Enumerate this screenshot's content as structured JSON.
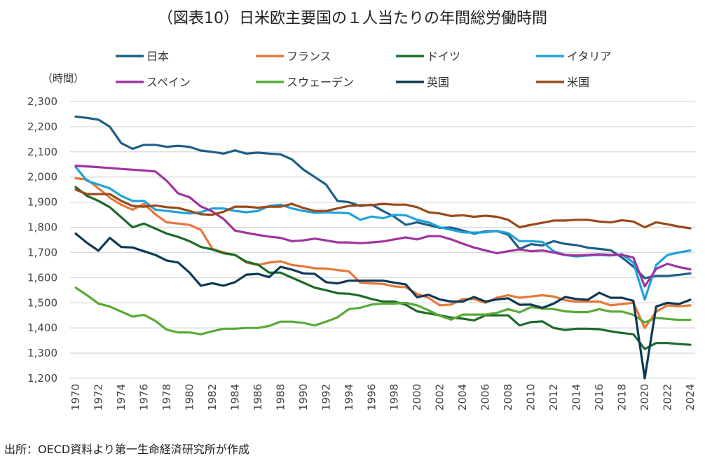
{
  "chart_data": {
    "type": "line",
    "title": "（図表10）日米欧主要国の１人当たりの年間総労働時間",
    "ylabel": "（時間）",
    "source": "出所：OECD資料より第一生命経済研究所が作成",
    "ylim": [
      1200,
      2300
    ],
    "yticks": [
      "1,200",
      "1,300",
      "1,400",
      "1,500",
      "1,600",
      "1,700",
      "1,800",
      "1,900",
      "2,000",
      "2,100",
      "2,200",
      "2,300"
    ],
    "x": [
      1970,
      1971,
      1972,
      1973,
      1974,
      1975,
      1976,
      1977,
      1978,
      1979,
      1980,
      1981,
      1982,
      1983,
      1984,
      1985,
      1986,
      1987,
      1988,
      1989,
      1990,
      1991,
      1992,
      1993,
      1994,
      1995,
      1996,
      1997,
      1998,
      1999,
      2000,
      2001,
      2002,
      2003,
      2004,
      2005,
      2006,
      2007,
      2008,
      2009,
      2010,
      2011,
      2012,
      2013,
      2014,
      2015,
      2016,
      2017,
      2018,
      2019,
      2020,
      2021,
      2022,
      2023,
      2024
    ],
    "xticks": [
      "1970",
      "1972",
      "1974",
      "1976",
      "1978",
      "1980",
      "1982",
      "1984",
      "1986",
      "1988",
      "1990",
      "1992",
      "1994",
      "1996",
      "1998",
      "2000",
      "2002",
      "2004",
      "2006",
      "2008",
      "2010",
      "2012",
      "2014",
      "2016",
      "2018",
      "2020",
      "2022",
      "2024"
    ],
    "grid": true,
    "legend_position": "top",
    "series": [
      {
        "name": "日本",
        "color": "#1f5f85",
        "values": [
          2240,
          2235,
          2228,
          2200,
          2135,
          2112,
          2128,
          2128,
          2120,
          2124,
          2120,
          2105,
          2100,
          2093,
          2106,
          2093,
          2097,
          2093,
          2090,
          2070,
          2030,
          2000,
          1970,
          1905,
          1900,
          1885,
          1890,
          1865,
          1842,
          1810,
          1820,
          1809,
          1798,
          1799,
          1787,
          1775,
          1784,
          1785,
          1771,
          1714,
          1733,
          1728,
          1745,
          1734,
          1729,
          1719,
          1714,
          1709,
          1680,
          1644,
          1598,
          1607,
          1607,
          1611,
          1617
        ]
      },
      {
        "name": "フランス",
        "color": "#e8773a",
        "values": [
          1995,
          1990,
          1955,
          1918,
          1890,
          1870,
          1893,
          1852,
          1820,
          1815,
          1810,
          1790,
          1715,
          1700,
          1690,
          1660,
          1650,
          1660,
          1665,
          1650,
          1645,
          1637,
          1636,
          1630,
          1625,
          1580,
          1577,
          1575,
          1565,
          1562,
          1535,
          1520,
          1490,
          1493,
          1515,
          1515,
          1500,
          1520,
          1530,
          1520,
          1525,
          1530,
          1525,
          1510,
          1505,
          1505,
          1505,
          1490,
          1495,
          1500,
          1400,
          1465,
          1490,
          1486,
          1490
        ]
      },
      {
        "name": "ドイツ",
        "color": "#1e6b2a",
        "values": [
          1960,
          1925,
          1905,
          1880,
          1840,
          1800,
          1815,
          1795,
          1775,
          1762,
          1745,
          1722,
          1712,
          1697,
          1690,
          1663,
          1652,
          1620,
          1620,
          1600,
          1580,
          1560,
          1550,
          1538,
          1536,
          1528,
          1515,
          1505,
          1505,
          1492,
          1466,
          1458,
          1450,
          1441,
          1437,
          1430,
          1450,
          1450,
          1450,
          1410,
          1423,
          1426,
          1400,
          1392,
          1397,
          1397,
          1395,
          1387,
          1380,
          1375,
          1316,
          1340,
          1340,
          1336,
          1333
        ]
      },
      {
        "name": "イタリア",
        "color": "#1ea3da",
        "values": [
          2040,
          1985,
          1970,
          1955,
          1925,
          1905,
          1905,
          1870,
          1865,
          1860,
          1855,
          1860,
          1875,
          1875,
          1865,
          1860,
          1865,
          1885,
          1890,
          1875,
          1865,
          1858,
          1860,
          1858,
          1856,
          1830,
          1843,
          1836,
          1850,
          1848,
          1830,
          1820,
          1800,
          1790,
          1780,
          1779,
          1780,
          1786,
          1777,
          1745,
          1745,
          1742,
          1705,
          1690,
          1684,
          1688,
          1690,
          1688,
          1693,
          1660,
          1513,
          1650,
          1690,
          1700,
          1708
        ]
      },
      {
        "name": "スペイン",
        "color": "#a034a0",
        "values": [
          2045,
          2042,
          2039,
          2036,
          2032,
          2029,
          2026,
          2022,
          1985,
          1935,
          1920,
          1883,
          1863,
          1833,
          1787,
          1778,
          1770,
          1763,
          1758,
          1745,
          1748,
          1755,
          1748,
          1740,
          1740,
          1737,
          1740,
          1744,
          1752,
          1760,
          1752,
          1765,
          1765,
          1752,
          1735,
          1720,
          1708,
          1697,
          1705,
          1712,
          1705,
          1708,
          1700,
          1690,
          1688,
          1690,
          1693,
          1690,
          1690,
          1680,
          1565,
          1635,
          1655,
          1642,
          1633
        ]
      },
      {
        "name": "スウェーデン",
        "color": "#5aaa38",
        "values": [
          1560,
          1530,
          1497,
          1485,
          1465,
          1445,
          1452,
          1428,
          1393,
          1382,
          1382,
          1375,
          1387,
          1397,
          1397,
          1400,
          1400,
          1408,
          1425,
          1425,
          1420,
          1410,
          1425,
          1442,
          1475,
          1480,
          1493,
          1497,
          1497,
          1500,
          1490,
          1470,
          1448,
          1433,
          1453,
          1453,
          1453,
          1460,
          1475,
          1462,
          1483,
          1477,
          1475,
          1466,
          1463,
          1463,
          1475,
          1465,
          1465,
          1452,
          1422,
          1440,
          1436,
          1432,
          1432
        ]
      },
      {
        "name": "英国",
        "color": "#0e3a55",
        "values": [
          1775,
          1738,
          1707,
          1758,
          1722,
          1720,
          1705,
          1690,
          1668,
          1660,
          1620,
          1568,
          1578,
          1568,
          1582,
          1612,
          1615,
          1602,
          1643,
          1632,
          1617,
          1615,
          1582,
          1577,
          1588,
          1588,
          1588,
          1588,
          1580,
          1573,
          1522,
          1532,
          1513,
          1505,
          1505,
          1523,
          1505,
          1513,
          1518,
          1492,
          1493,
          1480,
          1497,
          1523,
          1515,
          1512,
          1540,
          1520,
          1520,
          1508,
          1200,
          1485,
          1500,
          1495,
          1512
        ]
      },
      {
        "name": "米国",
        "color": "#9a4a1a",
        "values": [
          1950,
          1932,
          1932,
          1932,
          1905,
          1885,
          1882,
          1887,
          1880,
          1877,
          1865,
          1852,
          1850,
          1862,
          1882,
          1882,
          1878,
          1882,
          1882,
          1893,
          1877,
          1865,
          1865,
          1875,
          1885,
          1888,
          1888,
          1893,
          1890,
          1890,
          1880,
          1860,
          1855,
          1845,
          1848,
          1842,
          1846,
          1842,
          1830,
          1800,
          1810,
          1818,
          1827,
          1827,
          1830,
          1830,
          1823,
          1820,
          1828,
          1823,
          1800,
          1820,
          1812,
          1803,
          1796
        ]
      }
    ]
  }
}
